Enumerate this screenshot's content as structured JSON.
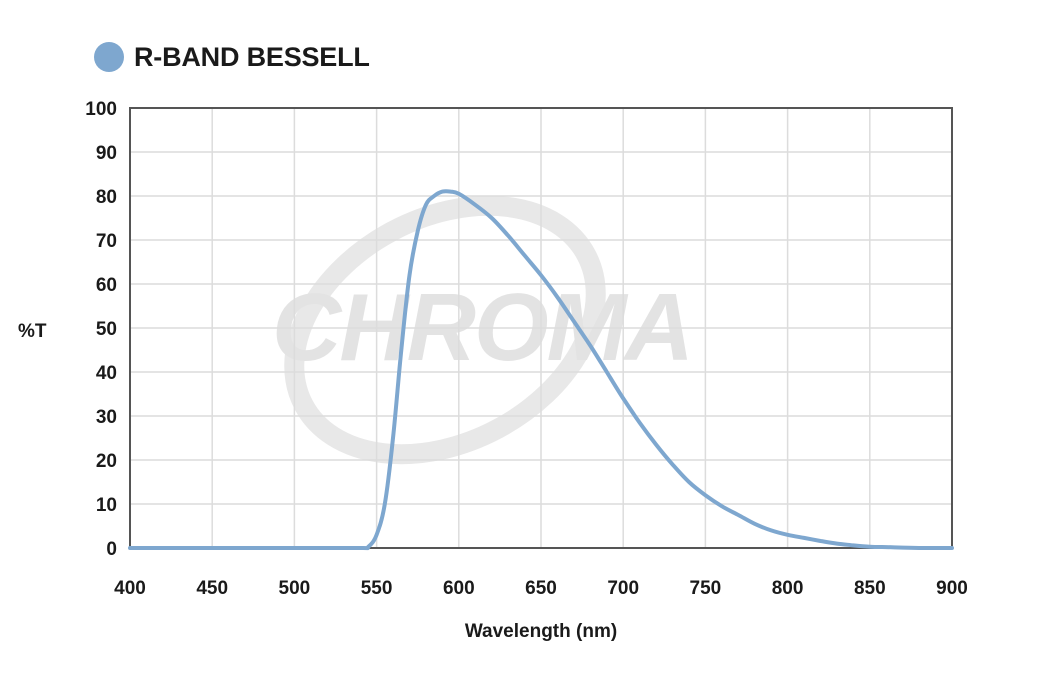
{
  "chart_data": {
    "type": "line",
    "title": "",
    "xlabel": "Wavelength (nm)",
    "ylabel": "%T",
    "xlim": [
      400,
      900
    ],
    "ylim": [
      0,
      100
    ],
    "x_ticks": [
      400,
      450,
      500,
      550,
      600,
      650,
      700,
      750,
      800,
      850,
      900
    ],
    "y_ticks": [
      0,
      10,
      20,
      30,
      40,
      50,
      60,
      70,
      80,
      90,
      100
    ],
    "grid": true,
    "legend_position": "top-left",
    "watermark": "CHROMA",
    "series": [
      {
        "name": "R-BAND BESSELL",
        "color": "#7ea7cf",
        "points": [
          [
            400,
            0
          ],
          [
            500,
            0
          ],
          [
            540,
            0
          ],
          [
            545,
            0.3
          ],
          [
            550,
            3
          ],
          [
            555,
            10
          ],
          [
            560,
            25
          ],
          [
            565,
            45
          ],
          [
            570,
            62
          ],
          [
            575,
            72
          ],
          [
            580,
            78
          ],
          [
            585,
            80
          ],
          [
            590,
            81
          ],
          [
            595,
            81
          ],
          [
            600,
            80.5
          ],
          [
            610,
            78
          ],
          [
            620,
            75
          ],
          [
            630,
            71
          ],
          [
            640,
            66.5
          ],
          [
            650,
            62
          ],
          [
            660,
            57
          ],
          [
            670,
            51.5
          ],
          [
            680,
            46
          ],
          [
            690,
            40
          ],
          [
            700,
            34
          ],
          [
            710,
            28.5
          ],
          [
            720,
            23.5
          ],
          [
            730,
            19
          ],
          [
            740,
            15
          ],
          [
            750,
            12
          ],
          [
            760,
            9.5
          ],
          [
            770,
            7.5
          ],
          [
            780,
            5.5
          ],
          [
            790,
            4
          ],
          [
            800,
            3
          ],
          [
            810,
            2.3
          ],
          [
            820,
            1.6
          ],
          [
            830,
            1
          ],
          [
            840,
            0.6
          ],
          [
            850,
            0.3
          ],
          [
            860,
            0.2
          ],
          [
            870,
            0.1
          ],
          [
            880,
            0
          ],
          [
            900,
            0
          ]
        ]
      }
    ]
  }
}
